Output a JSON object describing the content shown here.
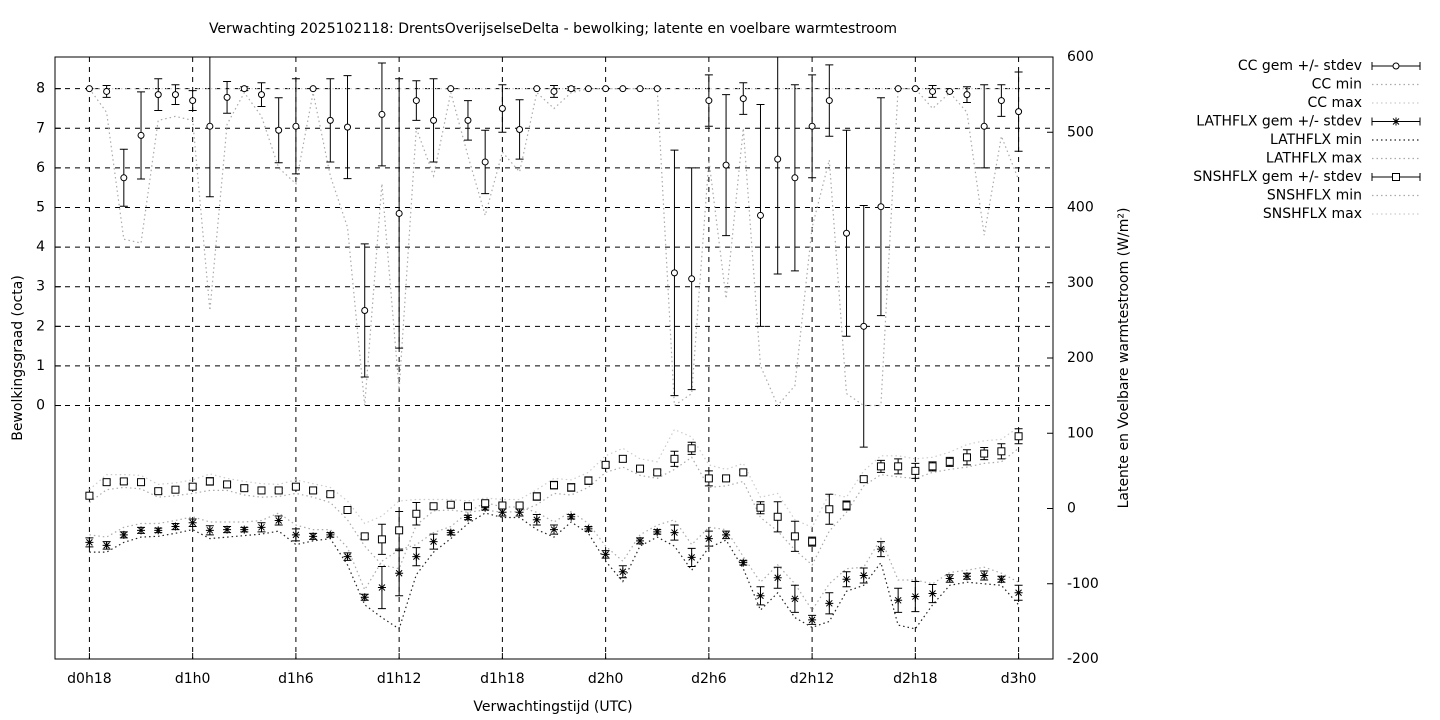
{
  "chart_data": {
    "type": "errorbar",
    "title": "Verwachting 2025102118: DrentsOverijselseDelta - bewolking; latente en voelbare warmtestroom",
    "xlabel": "Verwachtingstijd (UTC)",
    "ylabel": "Bewolkingsgraad (octa)",
    "y2label": "Latente en Voelbare warmtestroom (W/m²)",
    "xlim": [
      -2,
      56
    ],
    "ylim": [
      -6.4,
      8.8
    ],
    "y2lim": [
      -200,
      600
    ],
    "xticks": [
      {
        "value": 0,
        "label": "d0h18"
      },
      {
        "value": 6,
        "label": "d1h0"
      },
      {
        "value": 12,
        "label": "d1h6"
      },
      {
        "value": 18,
        "label": "d1h12"
      },
      {
        "value": 24,
        "label": "d1h18"
      },
      {
        "value": 30,
        "label": "d2h0"
      },
      {
        "value": 36,
        "label": "d2h6"
      },
      {
        "value": 42,
        "label": "d2h12"
      },
      {
        "value": 48,
        "label": "d2h18"
      },
      {
        "value": 54,
        "label": "d3h0"
      }
    ],
    "yticks": [
      0,
      1,
      2,
      3,
      4,
      5,
      6,
      7,
      8
    ],
    "y2ticks": [
      -200,
      -100,
      0,
      100,
      200,
      300,
      400,
      500,
      600
    ],
    "grid": true,
    "legend": "outside-top-right",
    "x": [
      0,
      1,
      2,
      3,
      4,
      5,
      6,
      7,
      8,
      9,
      10,
      11,
      12,
      13,
      14,
      15,
      16,
      17,
      18,
      19,
      20,
      21,
      22,
      23,
      24,
      25,
      26,
      27,
      28,
      29,
      30,
      31,
      32,
      33,
      34,
      35,
      36,
      37,
      38,
      39,
      40,
      41,
      42,
      43,
      44,
      45,
      46,
      47,
      48,
      49,
      50,
      51,
      52,
      53,
      54
    ],
    "series": [
      {
        "name": "CC gem +/- stdev",
        "color": "#000000",
        "marker": "circle",
        "axis": "y",
        "values": [
          8,
          7.93,
          5.75,
          6.82,
          7.85,
          7.85,
          7.7,
          7.05,
          7.78,
          8,
          7.85,
          6.95,
          7.05,
          8,
          7.2,
          7.03,
          2.4,
          7.35,
          4.85,
          7.7,
          7.2,
          8,
          7.2,
          6.15,
          7.5,
          6.97,
          8,
          7.93,
          8,
          8,
          8,
          8,
          8,
          8,
          3.35,
          3.2,
          7.7,
          6.07,
          7.75,
          4.8,
          6.22,
          5.75,
          7.05,
          7.7,
          4.35,
          2,
          5.02,
          8,
          8,
          7.93,
          7.93,
          7.85,
          7.05,
          7.7,
          7.42
        ],
        "errors": [
          0,
          0.15,
          0.72,
          1.1,
          0.4,
          0.25,
          0.25,
          1.78,
          0.4,
          0.05,
          0.3,
          0.82,
          1.2,
          0,
          1.05,
          1.3,
          1.68,
          1.3,
          3.4,
          0.5,
          1.05,
          0,
          0.5,
          0.8,
          0.6,
          0.75,
          0,
          0.15,
          0.05,
          0,
          0,
          0,
          0,
          0,
          3.1,
          2.8,
          0.65,
          1.78,
          0.4,
          2.8,
          2.9,
          2.35,
          1.3,
          0.9,
          2.6,
          3.05,
          2.75,
          0,
          0,
          0.15,
          0,
          0.2,
          1.05,
          0.4,
          1
        ]
      },
      {
        "name": "CC min",
        "color": "#aaaaaa",
        "axis": "y",
        "values": [
          8,
          7.4,
          4.2,
          4.1,
          7.2,
          7.3,
          7.2,
          2.4,
          7.1,
          7.9,
          7.3,
          6,
          5.6,
          7.9,
          5.8,
          4.5,
          0,
          5.6,
          0.4,
          7,
          5.8,
          7.9,
          6.3,
          4.8,
          6.4,
          5.9,
          7.9,
          7.5,
          7.9,
          8,
          8,
          8,
          8,
          8,
          0,
          0.3,
          6.2,
          2.7,
          7,
          1,
          0,
          0.5,
          4.5,
          6.2,
          0.3,
          0,
          0,
          8,
          8,
          7.5,
          7.9,
          7.4,
          4.3,
          6.8,
          5.7
        ]
      },
      {
        "name": "CC max",
        "color": "#cccccc",
        "axis": "y",
        "values": [
          8,
          8,
          8,
          8,
          8,
          8,
          8,
          8,
          8,
          8,
          8,
          8,
          8,
          8,
          8,
          8,
          8,
          8,
          8,
          8,
          8,
          8,
          8,
          8,
          8,
          8,
          8,
          8,
          8,
          8,
          8,
          8,
          8,
          8,
          8,
          8,
          8,
          8,
          8,
          8,
          8,
          8,
          8,
          8,
          8,
          8,
          8,
          8,
          8,
          8,
          8,
          8,
          8,
          8,
          8
        ]
      },
      {
        "name": "LATHFLX gem +/- stdev",
        "color": "#000000",
        "marker": "asterisk",
        "axis": "y2",
        "values": [
          -45,
          -49,
          -35,
          -29,
          -29,
          -24,
          -19,
          -29,
          -28,
          -28,
          -25,
          -16,
          -35,
          -37,
          -35,
          -64,
          -118,
          -105,
          -86,
          -64,
          -44,
          -32,
          -12,
          1,
          -5,
          -5,
          -15,
          -28,
          -11,
          -27,
          -61,
          -84,
          -43,
          -31,
          -32,
          -65,
          -40,
          -35,
          -72,
          -116,
          -92,
          -120,
          -148,
          -126,
          -94,
          -89,
          -54,
          -122,
          -117,
          -113,
          -93,
          -90,
          -89,
          -94,
          -112
        ],
        "errors": [
          6,
          5,
          4,
          4,
          3,
          4,
          5,
          6,
          4,
          3,
          6,
          6,
          8,
          4,
          3,
          5,
          4,
          28,
          30,
          12,
          10,
          3,
          3,
          3,
          5,
          5,
          7,
          6,
          3,
          3,
          5,
          8,
          4,
          3,
          10,
          12,
          10,
          5,
          3,
          12,
          14,
          18,
          6,
          14,
          10,
          10,
          10,
          16,
          20,
          12,
          5,
          4,
          6,
          4,
          10
        ]
      },
      {
        "name": "LATHFLX min",
        "color": "#222222",
        "axis": "y2",
        "values": [
          -58,
          -58,
          -45,
          -38,
          -37,
          -33,
          -28,
          -40,
          -38,
          -36,
          -34,
          -30,
          -48,
          -43,
          -40,
          -75,
          -128,
          -145,
          -160,
          -88,
          -58,
          -40,
          -20,
          -6,
          -12,
          -12,
          -28,
          -38,
          -18,
          -33,
          -70,
          -97,
          -50,
          -38,
          -50,
          -82,
          -52,
          -42,
          -80,
          -135,
          -112,
          -145,
          -158,
          -150,
          -110,
          -102,
          -72,
          -155,
          -160,
          -128,
          -102,
          -98,
          -100,
          -102,
          -128
        ]
      },
      {
        "name": "LATHFLX max",
        "color": "#aaaaaa",
        "axis": "y2",
        "values": [
          -35,
          -38,
          -25,
          -20,
          -20,
          -16,
          -11,
          -18,
          -18,
          -18,
          -16,
          -6,
          -22,
          -28,
          -28,
          -52,
          -108,
          -70,
          -55,
          -48,
          -32,
          -24,
          -5,
          8,
          2,
          2,
          -5,
          -18,
          -4,
          -20,
          -50,
          -70,
          -35,
          -22,
          -15,
          -48,
          -25,
          -28,
          -64,
          -98,
          -75,
          -100,
          -135,
          -100,
          -80,
          -78,
          -40,
          -95,
          -95,
          -100,
          -85,
          -82,
          -78,
          -86,
          -98
        ]
      },
      {
        "name": "SNSHFLX gem +/- stdev",
        "color": "#000000",
        "marker": "square",
        "axis": "y2",
        "values": [
          17,
          35,
          36,
          35,
          23,
          25,
          29,
          36,
          32,
          27,
          24,
          24,
          29,
          24,
          19,
          -2,
          -37,
          -41,
          -29,
          -7,
          3,
          5,
          3,
          7,
          4,
          4,
          16,
          31,
          28,
          37,
          58,
          66,
          53,
          48,
          66,
          80,
          40,
          40,
          48,
          1,
          -11,
          -37,
          -44,
          -1,
          4,
          39,
          56,
          56,
          50,
          56,
          62,
          68,
          73,
          76,
          96
        ],
        "errors": [
          3,
          3,
          3,
          3,
          3,
          3,
          3,
          5,
          3,
          3,
          3,
          3,
          3,
          3,
          3,
          3,
          3,
          20,
          25,
          15,
          3,
          3,
          3,
          3,
          3,
          3,
          5,
          5,
          5,
          5,
          3,
          4,
          3,
          3,
          10,
          8,
          10,
          3,
          3,
          8,
          20,
          20,
          6,
          20,
          6,
          3,
          8,
          10,
          10,
          6,
          6,
          10,
          8,
          10,
          10
        ]
      },
      {
        "name": "SNSHFLX min",
        "color": "#aaaaaa",
        "axis": "y2",
        "values": [
          8,
          25,
          28,
          26,
          15,
          17,
          20,
          24,
          24,
          18,
          15,
          16,
          20,
          15,
          8,
          -15,
          -50,
          -75,
          -80,
          -22,
          -3,
          -2,
          -5,
          -2,
          -5,
          -4,
          5,
          20,
          18,
          28,
          48,
          55,
          44,
          40,
          52,
          68,
          28,
          30,
          36,
          -12,
          -30,
          -55,
          -75,
          -30,
          -5,
          30,
          45,
          42,
          40,
          48,
          52,
          55,
          60,
          62,
          80
        ]
      },
      {
        "name": "SNSHFLX max",
        "color": "#cccccc",
        "axis": "y2",
        "values": [
          25,
          45,
          45,
          44,
          32,
          34,
          38,
          46,
          40,
          36,
          33,
          32,
          38,
          33,
          28,
          10,
          -20,
          -10,
          10,
          12,
          12,
          12,
          10,
          14,
          12,
          12,
          25,
          40,
          38,
          48,
          70,
          80,
          66,
          62,
          105,
          95,
          58,
          52,
          60,
          15,
          20,
          -15,
          -25,
          20,
          15,
          50,
          70,
          70,
          66,
          68,
          75,
          85,
          90,
          92,
          108
        ]
      }
    ]
  }
}
